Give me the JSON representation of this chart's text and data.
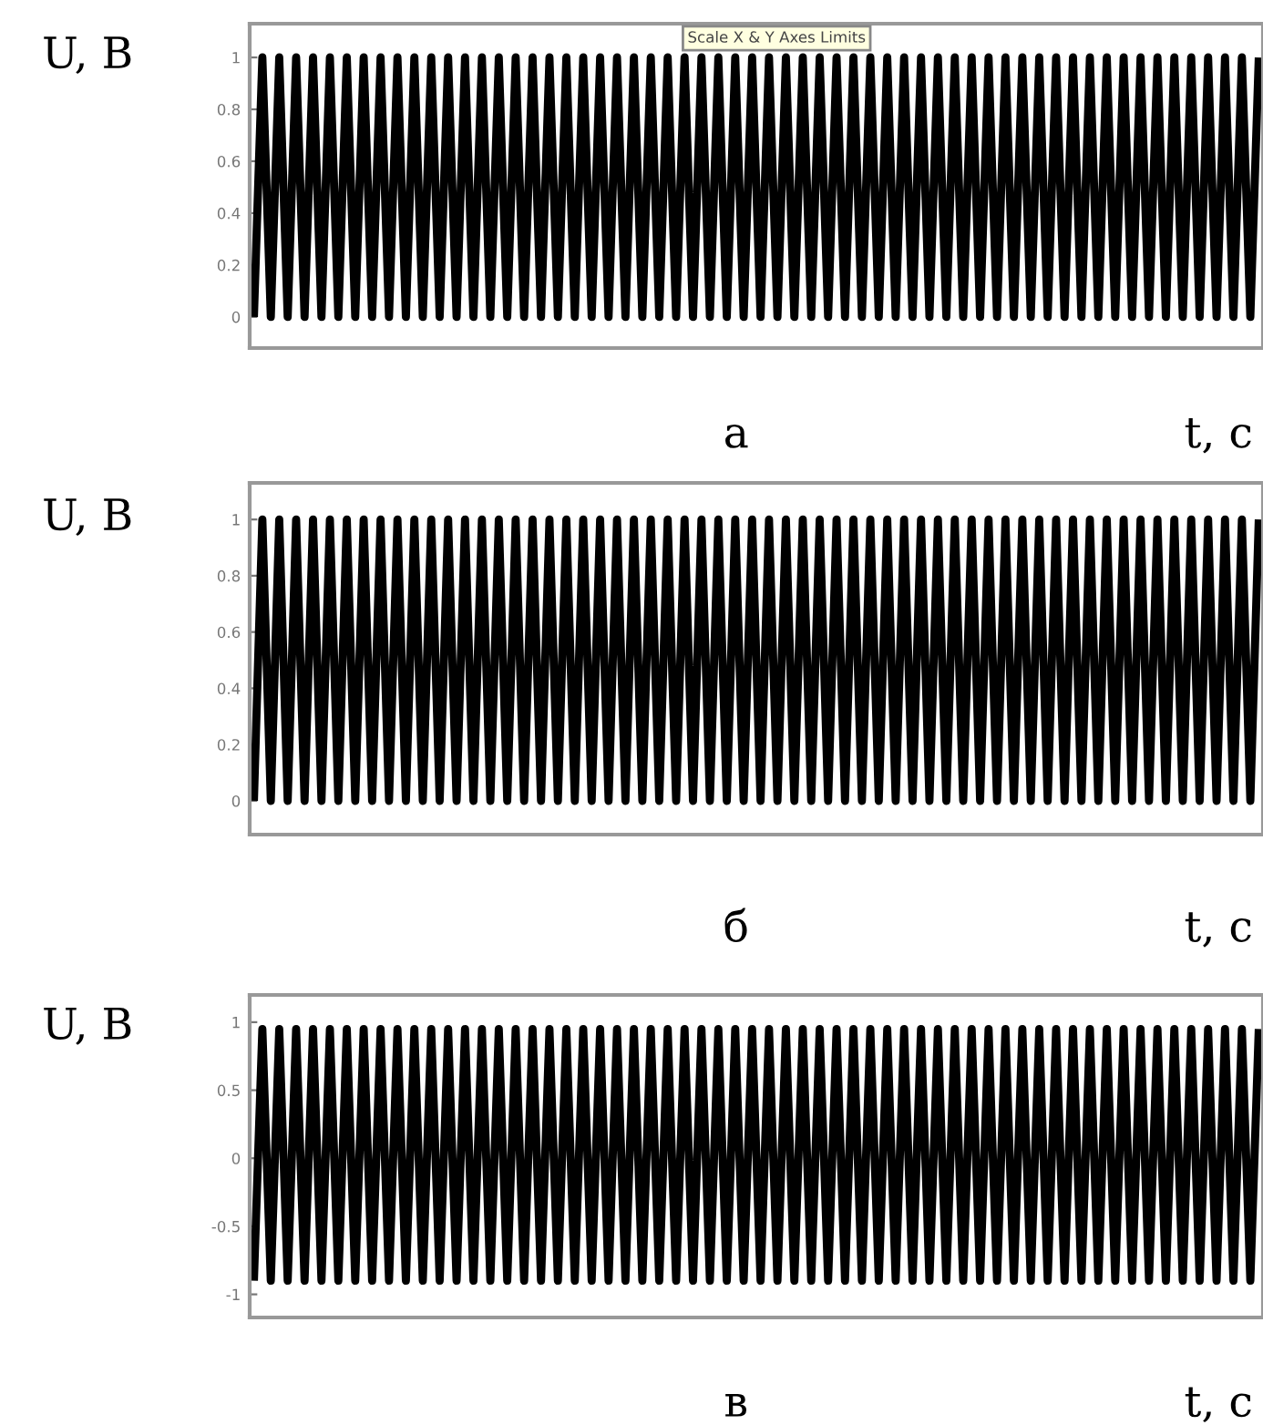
{
  "chart_data": [
    {
      "type": "line",
      "ylabel": "U, В",
      "xlabel": "t, с",
      "annotations": [
        "а",
        "Scale X & Y Axes Limits"
      ],
      "categories": [
        null,
        null,
        null,
        null,
        null,
        null,
        null,
        null,
        null,
        null,
        null,
        null,
        null,
        null,
        null,
        null,
        null,
        null,
        null,
        null,
        null,
        null,
        null,
        null,
        null,
        null,
        null,
        null,
        null,
        null,
        null,
        null,
        null,
        null,
        null,
        null,
        null,
        null,
        null,
        null,
        null,
        null,
        null,
        null,
        null,
        null,
        null,
        null,
        null,
        null,
        null,
        null,
        null,
        null,
        null,
        null,
        null,
        null,
        null,
        null,
        null,
        null,
        null,
        null,
        null,
        null,
        null,
        null,
        null,
        null,
        null,
        null,
        null,
        null,
        null,
        null,
        null,
        null,
        null,
        null,
        null,
        null,
        null,
        null,
        null,
        null,
        null,
        null,
        null,
        null,
        null,
        null,
        null,
        null,
        null,
        null,
        null,
        null,
        null,
        null,
        null,
        null,
        null,
        null,
        null,
        null,
        null,
        null,
        null,
        null,
        null,
        null,
        null,
        null,
        null,
        null,
        null,
        null,
        null,
        null
      ],
      "series": [
        {
          "color": "#000000",
          "values": [
            0,
            1,
            0,
            1,
            0,
            1,
            0,
            1,
            0,
            1,
            0,
            1,
            0,
            1,
            0,
            1,
            0,
            1,
            0,
            1,
            0,
            1,
            0,
            1,
            0,
            1,
            0,
            1,
            0,
            1,
            0,
            1,
            0,
            1,
            0,
            1,
            0,
            1,
            0,
            1,
            0,
            1,
            0,
            1,
            0,
            1,
            0,
            1,
            0,
            1,
            0,
            1,
            0,
            1,
            0,
            1,
            0,
            1,
            0,
            1,
            0,
            1,
            0,
            1,
            0,
            1,
            0,
            1,
            0,
            1,
            0,
            1,
            0,
            1,
            0,
            1,
            0,
            1,
            0,
            1,
            0,
            1,
            0,
            1,
            0,
            1,
            0,
            1,
            0,
            1,
            0,
            1,
            0,
            1,
            0,
            1,
            0,
            1,
            0,
            1,
            0,
            1,
            0,
            1,
            0,
            1,
            0,
            1,
            0,
            1,
            0,
            1,
            0,
            1,
            0,
            1,
            0,
            1,
            0,
            1
          ]
        }
      ],
      "ylim": [
        -0.12,
        1.13
      ],
      "yticks": [
        0,
        0.2,
        0.4,
        0.6,
        0.8,
        1
      ],
      "grid": false,
      "legend": false,
      "tick_labels": "y"
    },
    {
      "type": "line",
      "ylabel": "U, В",
      "xlabel": "t, с",
      "annotations": [
        "б"
      ],
      "categories": [
        null,
        null,
        null,
        null,
        null,
        null,
        null,
        null,
        null,
        null,
        null,
        null,
        null,
        null,
        null,
        null,
        null,
        null,
        null,
        null,
        null,
        null,
        null,
        null,
        null,
        null,
        null,
        null,
        null,
        null,
        null,
        null,
        null,
        null,
        null,
        null,
        null,
        null,
        null,
        null,
        null,
        null,
        null,
        null,
        null,
        null,
        null,
        null,
        null,
        null,
        null,
        null,
        null,
        null,
        null,
        null,
        null,
        null,
        null,
        null,
        null,
        null,
        null,
        null,
        null,
        null,
        null,
        null,
        null,
        null,
        null,
        null,
        null,
        null,
        null,
        null,
        null,
        null,
        null,
        null,
        null,
        null,
        null,
        null,
        null,
        null,
        null,
        null,
        null,
        null,
        null,
        null,
        null,
        null,
        null,
        null,
        null,
        null,
        null,
        null,
        null,
        null,
        null,
        null,
        null,
        null,
        null,
        null,
        null,
        null,
        null,
        null,
        null,
        null,
        null,
        null,
        null,
        null,
        null,
        null
      ],
      "series": [
        {
          "color": "#000000",
          "values": [
            0,
            1,
            0,
            1,
            0,
            1,
            0,
            1,
            0,
            1,
            0,
            1,
            0,
            1,
            0,
            1,
            0,
            1,
            0,
            1,
            0,
            1,
            0,
            1,
            0,
            1,
            0,
            1,
            0,
            1,
            0,
            1,
            0,
            1,
            0,
            1,
            0,
            1,
            0,
            1,
            0,
            1,
            0,
            1,
            0,
            1,
            0,
            1,
            0,
            1,
            0,
            1,
            0,
            1,
            0,
            1,
            0,
            1,
            0,
            1,
            0,
            1,
            0,
            1,
            0,
            1,
            0,
            1,
            0,
            1,
            0,
            1,
            0,
            1,
            0,
            1,
            0,
            1,
            0,
            1,
            0,
            1,
            0,
            1,
            0,
            1,
            0,
            1,
            0,
            1,
            0,
            1,
            0,
            1,
            0,
            1,
            0,
            1,
            0,
            1,
            0,
            1,
            0,
            1,
            0,
            1,
            0,
            1,
            0,
            1,
            0,
            1,
            0,
            1,
            0,
            1,
            0,
            1,
            0,
            1
          ]
        }
      ],
      "ylim": [
        -0.12,
        1.13
      ],
      "yticks": [
        0,
        0.2,
        0.4,
        0.6,
        0.8,
        1
      ],
      "grid": false,
      "legend": false,
      "tick_labels": "y"
    },
    {
      "type": "line",
      "ylabel": "U, В",
      "xlabel": "t, с",
      "annotations": [
        "в"
      ],
      "categories": [
        null,
        null,
        null,
        null,
        null,
        null,
        null,
        null,
        null,
        null,
        null,
        null,
        null,
        null,
        null,
        null,
        null,
        null,
        null,
        null,
        null,
        null,
        null,
        null,
        null,
        null,
        null,
        null,
        null,
        null,
        null,
        null,
        null,
        null,
        null,
        null,
        null,
        null,
        null,
        null,
        null,
        null,
        null,
        null,
        null,
        null,
        null,
        null,
        null,
        null,
        null,
        null,
        null,
        null,
        null,
        null,
        null,
        null,
        null,
        null,
        null,
        null,
        null,
        null,
        null,
        null,
        null,
        null,
        null,
        null,
        null,
        null,
        null,
        null,
        null,
        null,
        null,
        null,
        null,
        null,
        null,
        null,
        null,
        null,
        null,
        null,
        null,
        null,
        null,
        null,
        null,
        null,
        null,
        null,
        null,
        null,
        null,
        null,
        null,
        null,
        null,
        null,
        null,
        null,
        null,
        null,
        null,
        null,
        null,
        null,
        null,
        null,
        null,
        null,
        null,
        null,
        null,
        null,
        null,
        null
      ],
      "series": [
        {
          "color": "#000000",
          "values": [
            -0.9,
            0.95,
            -0.9,
            0.95,
            -0.9,
            0.95,
            -0.9,
            0.95,
            -0.9,
            0.95,
            -0.9,
            0.95,
            -0.9,
            0.95,
            -0.9,
            0.95,
            -0.9,
            0.95,
            -0.9,
            0.95,
            -0.9,
            0.95,
            -0.9,
            0.95,
            -0.9,
            0.95,
            -0.9,
            0.95,
            -0.9,
            0.95,
            -0.9,
            0.95,
            -0.9,
            0.95,
            -0.9,
            0.95,
            -0.9,
            0.95,
            -0.9,
            0.95,
            -0.9,
            0.95,
            -0.9,
            0.95,
            -0.9,
            0.95,
            -0.9,
            0.95,
            -0.9,
            0.95,
            -0.9,
            0.95,
            -0.9,
            0.95,
            -0.9,
            0.95,
            -0.9,
            0.95,
            -0.9,
            0.95,
            -0.9,
            0.95,
            -0.9,
            0.95,
            -0.9,
            0.95,
            -0.9,
            0.95,
            -0.9,
            0.95,
            -0.9,
            0.95,
            -0.9,
            0.95,
            -0.9,
            0.95,
            -0.9,
            0.95,
            -0.9,
            0.95,
            -0.9,
            0.95,
            -0.9,
            0.95,
            -0.9,
            0.95,
            -0.9,
            0.95,
            -0.9,
            0.95,
            -0.9,
            0.95,
            -0.9,
            0.95,
            -0.9,
            0.95,
            -0.9,
            0.95,
            -0.9,
            0.95,
            -0.9,
            0.95,
            -0.9,
            0.95,
            -0.9,
            0.95,
            -0.9,
            0.95,
            -0.9,
            0.95,
            -0.9,
            0.95,
            -0.9,
            0.95,
            -0.9,
            0.95,
            -0.9,
            0.95,
            -0.9,
            0.95
          ]
        }
      ],
      "ylim": [
        -1.17,
        1.2
      ],
      "yticks": [
        -1,
        -0.5,
        0,
        0.5,
        1
      ],
      "grid": false,
      "legend": false,
      "tick_labels": "y"
    }
  ]
}
